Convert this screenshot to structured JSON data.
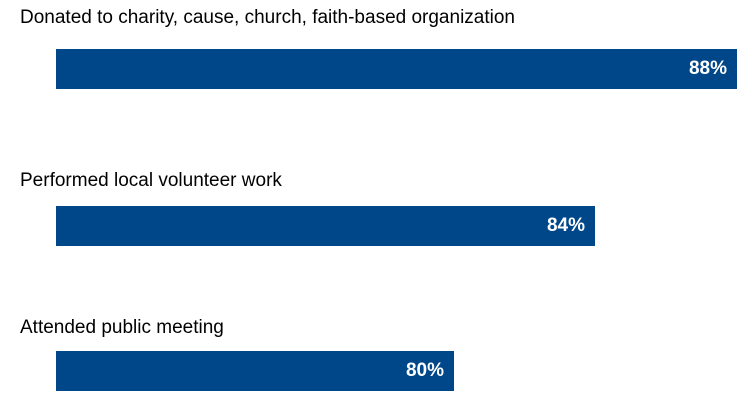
{
  "chart_data": {
    "type": "bar",
    "orientation": "horizontal",
    "categories": [
      "Donated to charity, cause, church, faith-based organization",
      "Performed local volunteer work",
      "Attended public meeting"
    ],
    "values": [
      88,
      84,
      80
    ],
    "value_labels": [
      "88%",
      "84%",
      "80%"
    ],
    "unit": "%",
    "bar_color": "#00478a",
    "label_color": "#000000",
    "value_label_color": "#ffffff",
    "grid": false,
    "legend": "none"
  }
}
